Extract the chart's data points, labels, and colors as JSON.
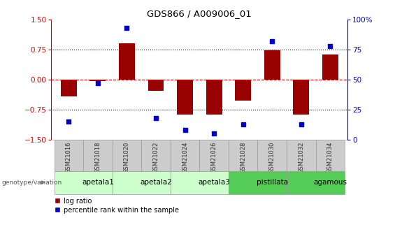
{
  "title": "GDS866 / A009006_01",
  "samples": [
    "GSM21016",
    "GSM21018",
    "GSM21020",
    "GSM21022",
    "GSM21024",
    "GSM21026",
    "GSM21028",
    "GSM21030",
    "GSM21032",
    "GSM21034"
  ],
  "log_ratios": [
    -0.42,
    -0.04,
    0.9,
    -0.28,
    -0.88,
    -0.88,
    -0.52,
    0.72,
    -0.88,
    0.62
  ],
  "percentile_ranks": [
    15,
    47,
    93,
    18,
    8,
    5,
    13,
    82,
    13,
    78
  ],
  "groups": [
    {
      "name": "apetala1",
      "start": 0,
      "end": 2,
      "color": "#ccffcc"
    },
    {
      "name": "apetala2",
      "start": 2,
      "end": 4,
      "color": "#ccffcc"
    },
    {
      "name": "apetala3",
      "start": 4,
      "end": 6,
      "color": "#ccffcc"
    },
    {
      "name": "pistillata",
      "start": 6,
      "end": 8,
      "color": "#55cc55"
    },
    {
      "name": "agamous",
      "start": 8,
      "end": 10,
      "color": "#55cc55"
    }
  ],
  "bar_color": "#990000",
  "dot_color": "#0000cc",
  "left_axis_color": "#cc0000",
  "right_axis_color": "#0000cc",
  "ylim_left": [
    -1.5,
    1.5
  ],
  "ylim_right": [
    0,
    100
  ],
  "yticks_left": [
    -1.5,
    -0.75,
    0,
    0.75,
    1.5
  ],
  "yticks_right": [
    0,
    25,
    50,
    75,
    100
  ],
  "hline_color": "#cc0000",
  "dotted_line_color": "#000000",
  "bar_width": 0.55,
  "legend_red_label": "log ratio",
  "legend_blue_label": "percentile rank within the sample",
  "genotype_label": "genotype/variation",
  "sample_box_color": "#cccccc",
  "sample_box_edge": "#999999",
  "group_box_edge": "#999999"
}
